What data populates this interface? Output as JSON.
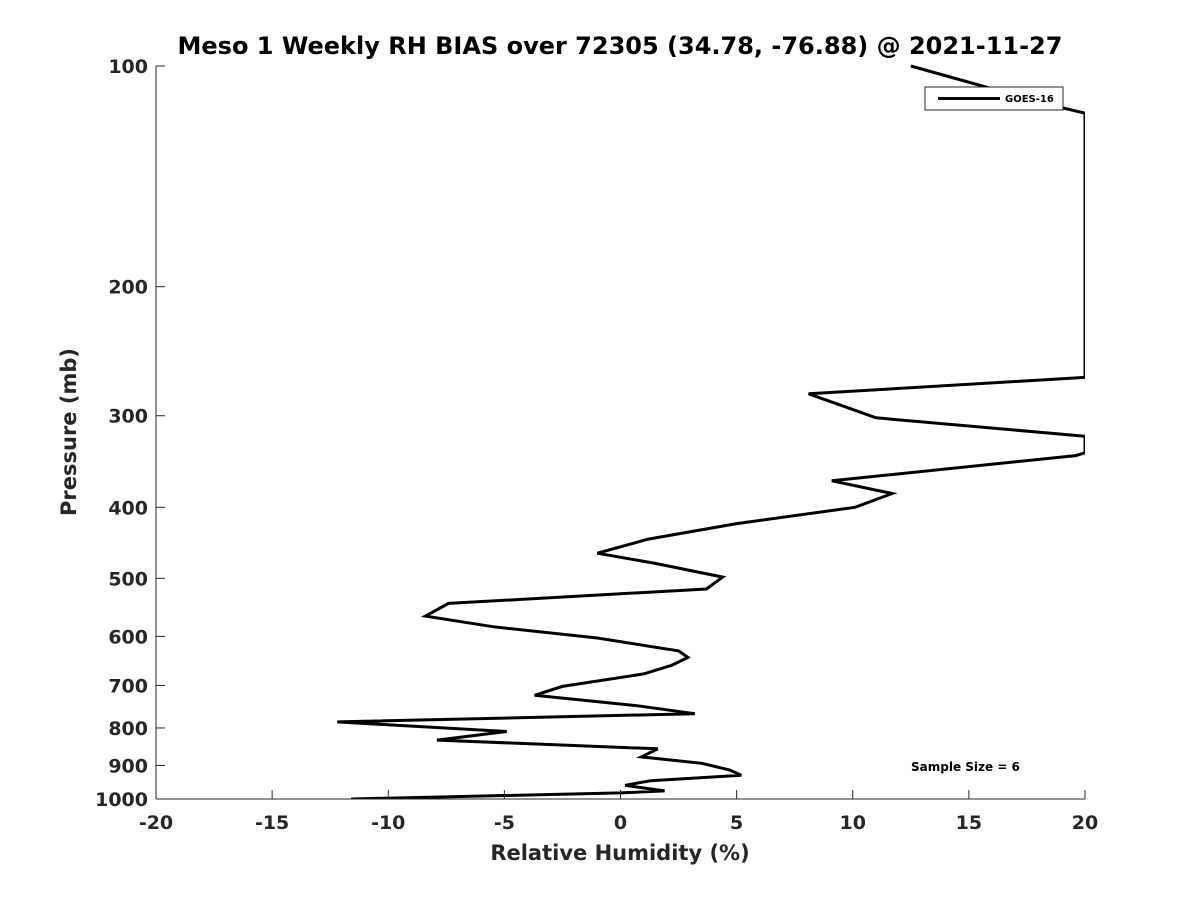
{
  "chart_data": {
    "type": "line",
    "title": "Meso 1 Weekly RH BIAS over 72305 (34.78, -76.88) @ 2021-11-27",
    "xlabel": "Relative Humidity (%)",
    "ylabel": "Pressure (mb)",
    "xlim": [
      -20,
      20
    ],
    "ylim": [
      1000,
      100
    ],
    "y_scale": "log",
    "y_reversed": true,
    "grid": false,
    "legend_position": "top-right",
    "xticks": [
      -20,
      -15,
      -10,
      -5,
      0,
      5,
      10,
      15,
      20
    ],
    "xtick_labels": [
      "-20",
      "-15",
      "-10",
      "-5",
      "0",
      "5",
      "10",
      "15",
      "20"
    ],
    "yticks": [
      100,
      200,
      300,
      400,
      500,
      600,
      700,
      800,
      900,
      1000
    ],
    "ytick_labels": [
      "100",
      "200",
      "300",
      "400",
      "500",
      "600",
      "700",
      "800",
      "900",
      "1000"
    ],
    "series": [
      {
        "name": "GOES-16",
        "color": "#000000",
        "points": [
          [
            12.5,
            100
          ],
          [
            18.5,
            113
          ],
          [
            20,
            116
          ],
          [
            20,
            266
          ],
          [
            8.1,
            280
          ],
          [
            11,
            302
          ],
          [
            20,
            320
          ],
          [
            20,
            337
          ],
          [
            19.6,
            340
          ],
          [
            9.1,
            368
          ],
          [
            11.7,
            383
          ],
          [
            10.1,
            400
          ],
          [
            5,
            421
          ],
          [
            1.2,
            442
          ],
          [
            -1,
            462
          ],
          [
            1.5,
            477
          ],
          [
            4.4,
            498
          ],
          [
            3.7,
            517
          ],
          [
            -7.4,
            541
          ],
          [
            -8.4,
            563
          ],
          [
            -5.5,
            582
          ],
          [
            -1,
            603
          ],
          [
            2.5,
            628
          ],
          [
            2.9,
            641
          ],
          [
            2.2,
            657
          ],
          [
            1,
            675
          ],
          [
            -2.5,
            702
          ],
          [
            -3.7,
            722
          ],
          [
            0.7,
            746
          ],
          [
            3.2,
            765
          ],
          [
            -12.2,
            785
          ],
          [
            -4.9,
            809
          ],
          [
            -7.9,
            831
          ],
          [
            1.6,
            854
          ],
          [
            0.9,
            876
          ],
          [
            3.5,
            894
          ],
          [
            4.7,
            913
          ],
          [
            5.2,
            928
          ],
          [
            1.3,
            944
          ],
          [
            0.2,
            958
          ],
          [
            1.9,
            975
          ],
          [
            0,
            981
          ],
          [
            -11.6,
            1000
          ]
        ]
      }
    ],
    "annotations": [
      "Sample Size = 6"
    ]
  }
}
